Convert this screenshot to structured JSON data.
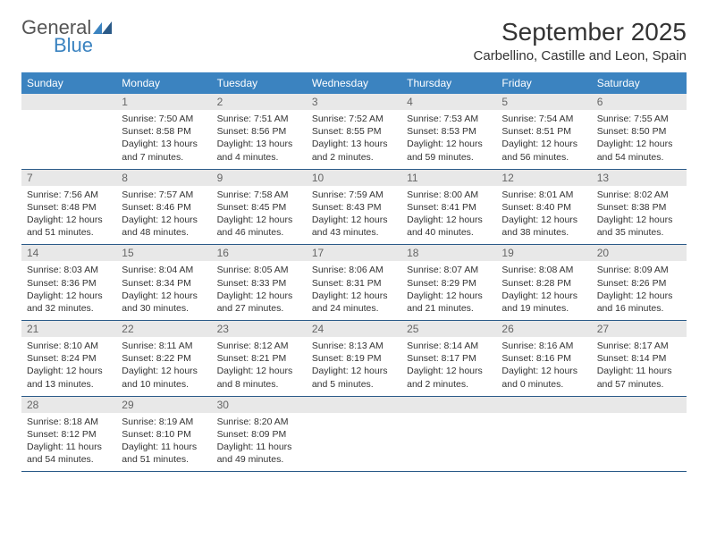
{
  "brand": {
    "word1": "General",
    "word2": "Blue",
    "accent_color": "#3b83c0"
  },
  "title": "September 2025",
  "location": "Carbellino, Castille and Leon, Spain",
  "day_headers": [
    "Sunday",
    "Monday",
    "Tuesday",
    "Wednesday",
    "Thursday",
    "Friday",
    "Saturday"
  ],
  "header_bg": "#3b83c0",
  "header_fg": "#ffffff",
  "daynum_bg": "#e8e8e8",
  "rule_color": "#2a5a88",
  "weeks": [
    [
      {
        "n": "",
        "lines": []
      },
      {
        "n": "1",
        "lines": [
          "Sunrise: 7:50 AM",
          "Sunset: 8:58 PM",
          "Daylight: 13 hours",
          "and 7 minutes."
        ]
      },
      {
        "n": "2",
        "lines": [
          "Sunrise: 7:51 AM",
          "Sunset: 8:56 PM",
          "Daylight: 13 hours",
          "and 4 minutes."
        ]
      },
      {
        "n": "3",
        "lines": [
          "Sunrise: 7:52 AM",
          "Sunset: 8:55 PM",
          "Daylight: 13 hours",
          "and 2 minutes."
        ]
      },
      {
        "n": "4",
        "lines": [
          "Sunrise: 7:53 AM",
          "Sunset: 8:53 PM",
          "Daylight: 12 hours",
          "and 59 minutes."
        ]
      },
      {
        "n": "5",
        "lines": [
          "Sunrise: 7:54 AM",
          "Sunset: 8:51 PM",
          "Daylight: 12 hours",
          "and 56 minutes."
        ]
      },
      {
        "n": "6",
        "lines": [
          "Sunrise: 7:55 AM",
          "Sunset: 8:50 PM",
          "Daylight: 12 hours",
          "and 54 minutes."
        ]
      }
    ],
    [
      {
        "n": "7",
        "lines": [
          "Sunrise: 7:56 AM",
          "Sunset: 8:48 PM",
          "Daylight: 12 hours",
          "and 51 minutes."
        ]
      },
      {
        "n": "8",
        "lines": [
          "Sunrise: 7:57 AM",
          "Sunset: 8:46 PM",
          "Daylight: 12 hours",
          "and 48 minutes."
        ]
      },
      {
        "n": "9",
        "lines": [
          "Sunrise: 7:58 AM",
          "Sunset: 8:45 PM",
          "Daylight: 12 hours",
          "and 46 minutes."
        ]
      },
      {
        "n": "10",
        "lines": [
          "Sunrise: 7:59 AM",
          "Sunset: 8:43 PM",
          "Daylight: 12 hours",
          "and 43 minutes."
        ]
      },
      {
        "n": "11",
        "lines": [
          "Sunrise: 8:00 AM",
          "Sunset: 8:41 PM",
          "Daylight: 12 hours",
          "and 40 minutes."
        ]
      },
      {
        "n": "12",
        "lines": [
          "Sunrise: 8:01 AM",
          "Sunset: 8:40 PM",
          "Daylight: 12 hours",
          "and 38 minutes."
        ]
      },
      {
        "n": "13",
        "lines": [
          "Sunrise: 8:02 AM",
          "Sunset: 8:38 PM",
          "Daylight: 12 hours",
          "and 35 minutes."
        ]
      }
    ],
    [
      {
        "n": "14",
        "lines": [
          "Sunrise: 8:03 AM",
          "Sunset: 8:36 PM",
          "Daylight: 12 hours",
          "and 32 minutes."
        ]
      },
      {
        "n": "15",
        "lines": [
          "Sunrise: 8:04 AM",
          "Sunset: 8:34 PM",
          "Daylight: 12 hours",
          "and 30 minutes."
        ]
      },
      {
        "n": "16",
        "lines": [
          "Sunrise: 8:05 AM",
          "Sunset: 8:33 PM",
          "Daylight: 12 hours",
          "and 27 minutes."
        ]
      },
      {
        "n": "17",
        "lines": [
          "Sunrise: 8:06 AM",
          "Sunset: 8:31 PM",
          "Daylight: 12 hours",
          "and 24 minutes."
        ]
      },
      {
        "n": "18",
        "lines": [
          "Sunrise: 8:07 AM",
          "Sunset: 8:29 PM",
          "Daylight: 12 hours",
          "and 21 minutes."
        ]
      },
      {
        "n": "19",
        "lines": [
          "Sunrise: 8:08 AM",
          "Sunset: 8:28 PM",
          "Daylight: 12 hours",
          "and 19 minutes."
        ]
      },
      {
        "n": "20",
        "lines": [
          "Sunrise: 8:09 AM",
          "Sunset: 8:26 PM",
          "Daylight: 12 hours",
          "and 16 minutes."
        ]
      }
    ],
    [
      {
        "n": "21",
        "lines": [
          "Sunrise: 8:10 AM",
          "Sunset: 8:24 PM",
          "Daylight: 12 hours",
          "and 13 minutes."
        ]
      },
      {
        "n": "22",
        "lines": [
          "Sunrise: 8:11 AM",
          "Sunset: 8:22 PM",
          "Daylight: 12 hours",
          "and 10 minutes."
        ]
      },
      {
        "n": "23",
        "lines": [
          "Sunrise: 8:12 AM",
          "Sunset: 8:21 PM",
          "Daylight: 12 hours",
          "and 8 minutes."
        ]
      },
      {
        "n": "24",
        "lines": [
          "Sunrise: 8:13 AM",
          "Sunset: 8:19 PM",
          "Daylight: 12 hours",
          "and 5 minutes."
        ]
      },
      {
        "n": "25",
        "lines": [
          "Sunrise: 8:14 AM",
          "Sunset: 8:17 PM",
          "Daylight: 12 hours",
          "and 2 minutes."
        ]
      },
      {
        "n": "26",
        "lines": [
          "Sunrise: 8:16 AM",
          "Sunset: 8:16 PM",
          "Daylight: 12 hours",
          "and 0 minutes."
        ]
      },
      {
        "n": "27",
        "lines": [
          "Sunrise: 8:17 AM",
          "Sunset: 8:14 PM",
          "Daylight: 11 hours",
          "and 57 minutes."
        ]
      }
    ],
    [
      {
        "n": "28",
        "lines": [
          "Sunrise: 8:18 AM",
          "Sunset: 8:12 PM",
          "Daylight: 11 hours",
          "and 54 minutes."
        ]
      },
      {
        "n": "29",
        "lines": [
          "Sunrise: 8:19 AM",
          "Sunset: 8:10 PM",
          "Daylight: 11 hours",
          "and 51 minutes."
        ]
      },
      {
        "n": "30",
        "lines": [
          "Sunrise: 8:20 AM",
          "Sunset: 8:09 PM",
          "Daylight: 11 hours",
          "and 49 minutes."
        ]
      },
      {
        "n": "",
        "lines": []
      },
      {
        "n": "",
        "lines": []
      },
      {
        "n": "",
        "lines": []
      },
      {
        "n": "",
        "lines": []
      }
    ]
  ]
}
